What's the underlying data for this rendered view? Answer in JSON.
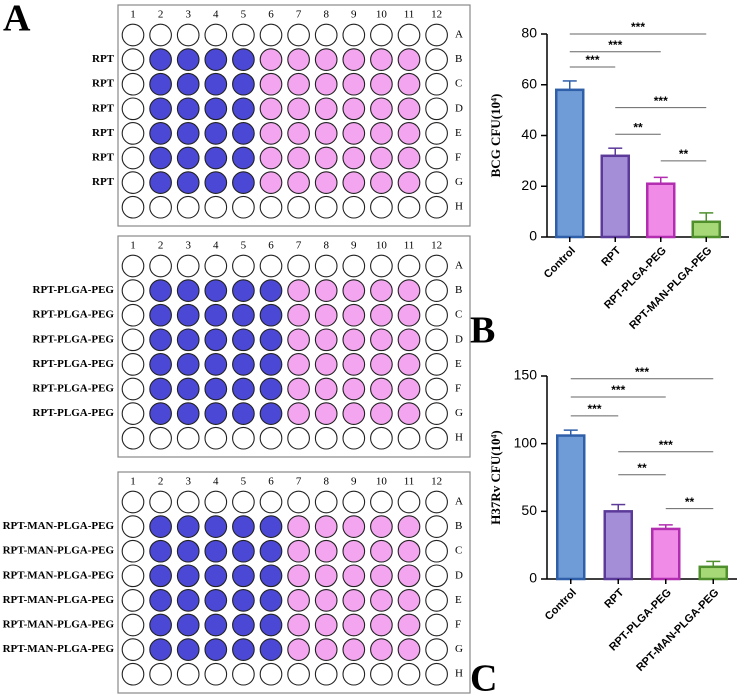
{
  "panel_labels": [
    "A",
    "B",
    "C"
  ],
  "plates": [
    {
      "columns": [
        "1",
        "2",
        "3",
        "4",
        "5",
        "6",
        "7",
        "8",
        "9",
        "10",
        "11",
        "12"
      ],
      "rows": [
        "A",
        "B",
        "C",
        "D",
        "E",
        "F",
        "G",
        "H"
      ],
      "row_labels": [
        null,
        "RPT",
        "RPT",
        "RPT",
        "RPT",
        "RPT",
        "RPT",
        null
      ],
      "column_colors": [
        "#ffffff",
        "#4b48d6",
        "#4b48d6",
        "#4b48d6",
        "#4b48d6",
        "#f3a6ef",
        "#f3a6ef",
        "#f3a6ef",
        "#f3a6ef",
        "#f3a6ef",
        "#f3a6ef",
        "#ffffff"
      ]
    },
    {
      "columns": [
        "1",
        "2",
        "3",
        "4",
        "5",
        "6",
        "7",
        "8",
        "9",
        "10",
        "11",
        "12"
      ],
      "rows": [
        "A",
        "B",
        "C",
        "D",
        "E",
        "F",
        "G",
        "H"
      ],
      "row_labels": [
        null,
        "RPT-PLGA-PEG",
        "RPT-PLGA-PEG",
        "RPT-PLGA-PEG",
        "RPT-PLGA-PEG",
        "RPT-PLGA-PEG",
        "RPT-PLGA-PEG",
        null
      ],
      "column_colors": [
        "#ffffff",
        "#4b48d6",
        "#4b48d6",
        "#4b48d6",
        "#4b48d6",
        "#4b48d6",
        "#f3a6ef",
        "#f3a6ef",
        "#f3a6ef",
        "#f3a6ef",
        "#f3a6ef",
        "#ffffff"
      ]
    },
    {
      "columns": [
        "1",
        "2",
        "3",
        "4",
        "5",
        "6",
        "7",
        "8",
        "9",
        "10",
        "11",
        "12"
      ],
      "rows": [
        "A",
        "B",
        "C",
        "D",
        "E",
        "F",
        "G",
        "H"
      ],
      "row_labels": [
        null,
        "RPT-MAN-PLGA-PEG",
        "RPT-MAN-PLGA-PEG",
        "RPT-MAN-PLGA-PEG",
        "RPT-MAN-PLGA-PEG",
        "RPT-MAN-PLGA-PEG",
        "RPT-MAN-PLGA-PEG",
        null
      ],
      "column_colors": [
        "#ffffff",
        "#4b48d6",
        "#4b48d6",
        "#4b48d6",
        "#4b48d6",
        "#4b48d6",
        "#f3a6ef",
        "#f3a6ef",
        "#f3a6ef",
        "#f3a6ef",
        "#f3a6ef",
        "#ffffff"
      ]
    }
  ],
  "chart_data": [
    {
      "type": "bar",
      "y_label": "BCG CFU(10⁴)",
      "categories": [
        "Control",
        "RPT",
        "RPT-PLGA-PEG",
        "RPT-MAN-PLGA-PEG"
      ],
      "values": [
        58,
        32,
        21,
        6
      ],
      "errors": [
        3.5,
        3,
        2.5,
        3.5
      ],
      "colors": [
        "#6f9bd6",
        "#a58ed8",
        "#f08ce8",
        "#a6d878"
      ],
      "edge_colors": [
        "#2f5fa8",
        "#5b3a99",
        "#b22db0",
        "#4f8f2c"
      ],
      "ylim": [
        0,
        80
      ],
      "yticks": [
        0,
        20,
        40,
        60,
        80
      ],
      "comparisons": [
        {
          "pair": [
            0,
            1
          ],
          "label": "***",
          "y": 67
        },
        {
          "pair": [
            0,
            2
          ],
          "label": "***",
          "y": 73
        },
        {
          "pair": [
            0,
            3
          ],
          "label": "***",
          "y": 80
        },
        {
          "pair": [
            1,
            3
          ],
          "label": "***",
          "y": 51
        },
        {
          "pair": [
            1,
            2
          ],
          "label": "**",
          "y": 40.5
        },
        {
          "pair": [
            2,
            3
          ],
          "label": "**",
          "y": 30
        }
      ]
    },
    {
      "type": "bar",
      "y_label": "H37Rv CFU(10⁴)",
      "categories": [
        "Control",
        "RPT",
        "RPT-PLGA-PEG",
        "RPT-MAN-PLGA-PEG"
      ],
      "values": [
        106,
        50,
        37,
        9
      ],
      "errors": [
        4,
        5,
        3,
        4
      ],
      "colors": [
        "#6f9bd6",
        "#a58ed8",
        "#f08ce8",
        "#a6d878"
      ],
      "edge_colors": [
        "#2f5fa8",
        "#5b3a99",
        "#b22db0",
        "#4f8f2c"
      ],
      "ylim": [
        0,
        150
      ],
      "yticks": [
        0,
        50,
        100,
        150
      ],
      "comparisons": [
        {
          "pair": [
            0,
            1
          ],
          "label": "***",
          "y": 120.5
        },
        {
          "pair": [
            0,
            2
          ],
          "label": "***",
          "y": 134.5
        },
        {
          "pair": [
            0,
            3
          ],
          "label": "***",
          "y": 148
        },
        {
          "pair": [
            1,
            3
          ],
          "label": "***",
          "y": 94
        },
        {
          "pair": [
            1,
            2
          ],
          "label": "**",
          "y": 77
        },
        {
          "pair": [
            2,
            3
          ],
          "label": "**",
          "y": 52
        }
      ]
    }
  ]
}
